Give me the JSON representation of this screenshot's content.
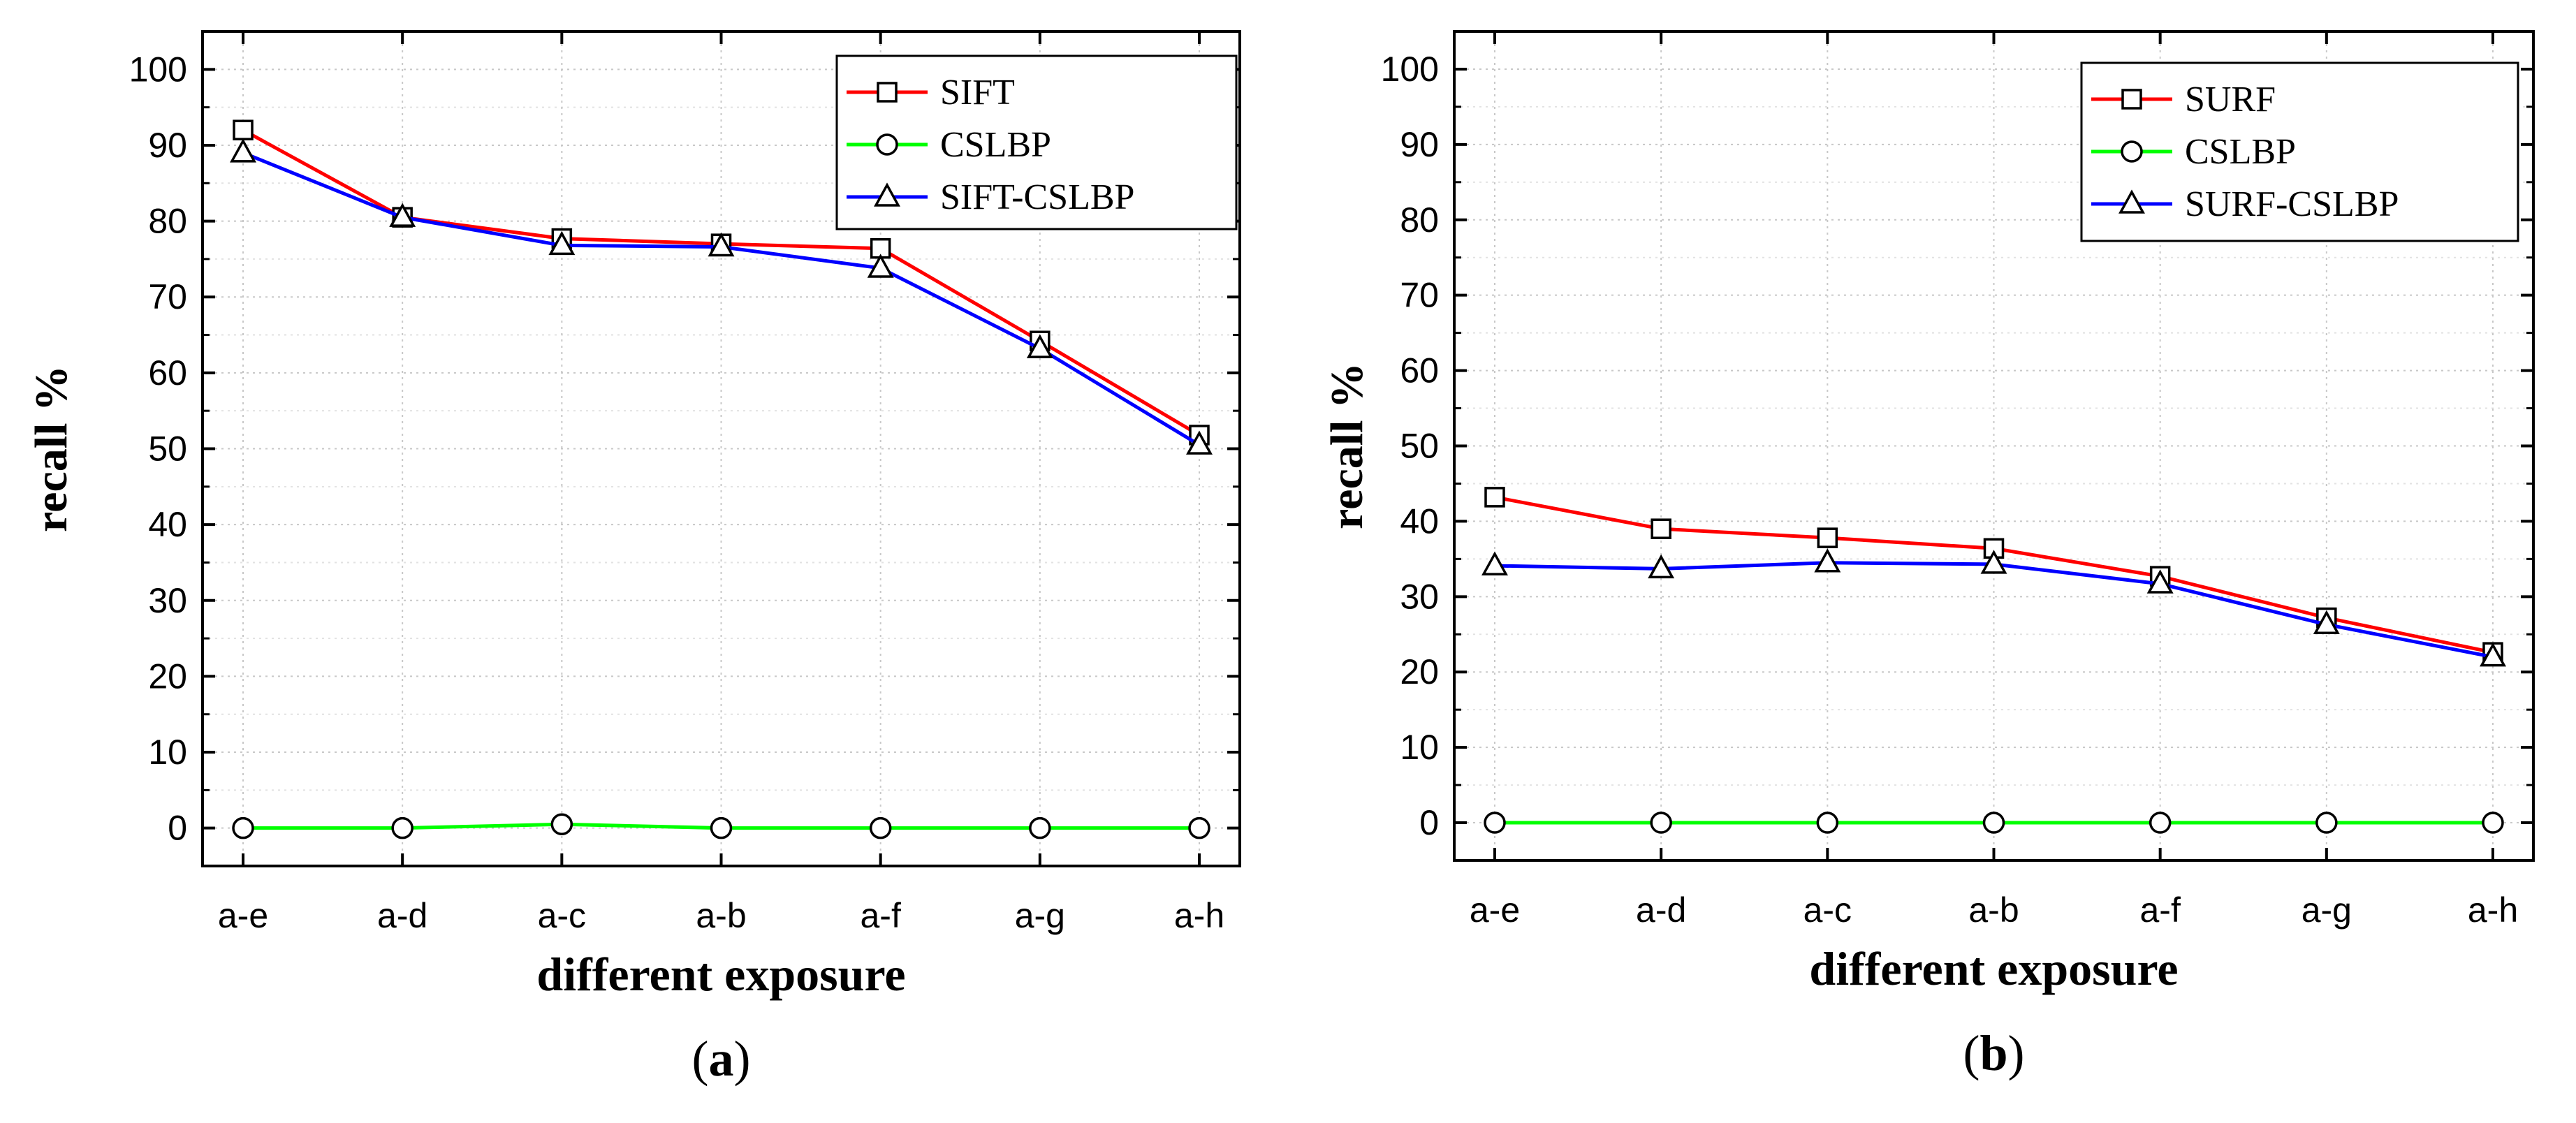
{
  "chart_data": [
    {
      "type": "line",
      "panel": "(a)",
      "caption_open": "(",
      "caption_letter": "a",
      "caption_close": ")",
      "title": "",
      "xlabel": "different exposure",
      "ylabel": "recall %",
      "ylim": [
        -5,
        105
      ],
      "yticks": [
        0,
        10,
        20,
        30,
        40,
        50,
        60,
        70,
        80,
        90,
        100
      ],
      "grid": true,
      "legend_position": "top-right",
      "categories": [
        "a-e",
        "a-d",
        "a-c",
        "a-b",
        "a-f",
        "a-g",
        "a-h"
      ],
      "series": [
        {
          "name": "SIFT",
          "color": "#ff0000",
          "marker": "square",
          "values": [
            92,
            80.5,
            77.7,
            77,
            76.4,
            64.2,
            51.8
          ]
        },
        {
          "name": "CSLBP",
          "color": "#00ff00",
          "marker": "circle",
          "values": [
            0,
            0,
            0.5,
            0,
            0,
            0,
            0
          ]
        },
        {
          "name": "SIFT-CSLBP",
          "color": "#0000ff",
          "marker": "triangle",
          "values": [
            89,
            80.5,
            76.8,
            76.6,
            73.8,
            63.2,
            50.5
          ]
        }
      ]
    },
    {
      "type": "line",
      "panel": "(b)",
      "caption_open": "(",
      "caption_letter": "b",
      "caption_close": ")",
      "title": "",
      "xlabel": "different exposure",
      "ylabel": "recall %",
      "ylim": [
        -5,
        105
      ],
      "yticks": [
        0,
        10,
        20,
        30,
        40,
        50,
        60,
        70,
        80,
        90,
        100
      ],
      "grid": true,
      "legend_position": "top-right",
      "categories": [
        "a-e",
        "a-d",
        "a-c",
        "a-b",
        "a-f",
        "a-g",
        "a-h"
      ],
      "series": [
        {
          "name": "SURF",
          "color": "#ff0000",
          "marker": "square",
          "values": [
            43.2,
            39,
            37.8,
            36.4,
            32.7,
            27.2,
            22.6
          ]
        },
        {
          "name": "CSLBP",
          "color": "#00ff00",
          "marker": "circle",
          "values": [
            0,
            0,
            0,
            0,
            0,
            0,
            0
          ]
        },
        {
          "name": "SURF-CSLBP",
          "color": "#0000ff",
          "marker": "triangle",
          "values": [
            34.1,
            33.7,
            34.5,
            34.3,
            31.7,
            26.3,
            22
          ]
        }
      ]
    }
  ]
}
